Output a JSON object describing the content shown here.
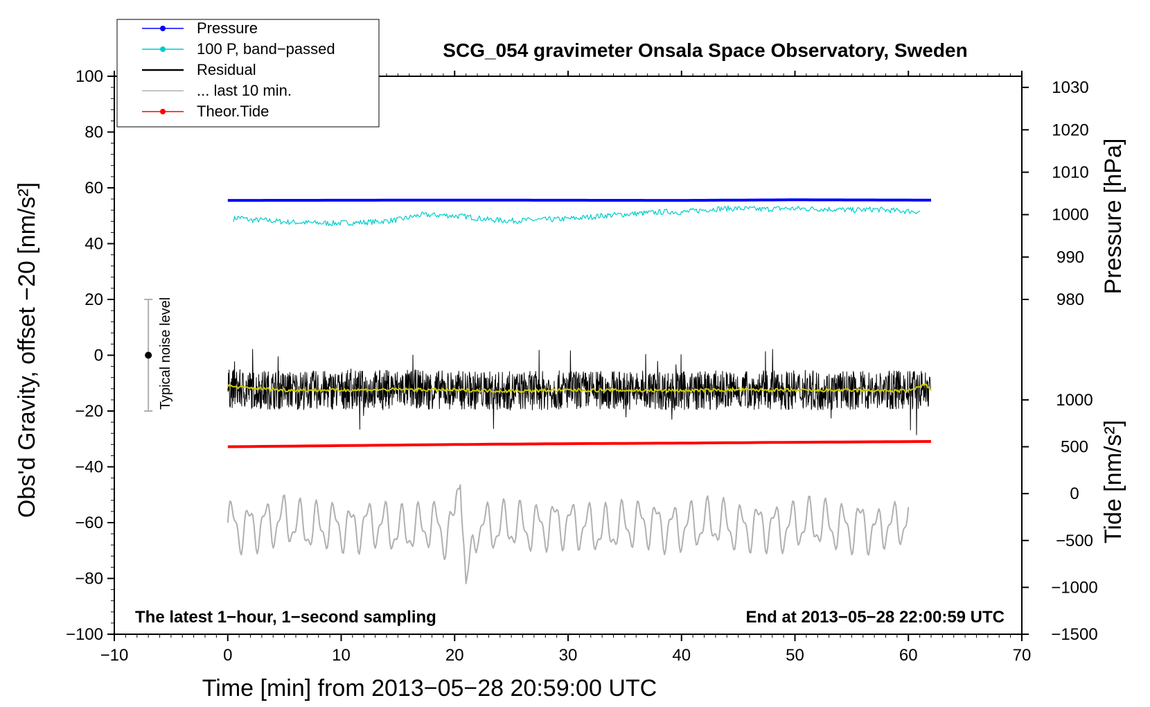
{
  "chart_data": {
    "type": "line",
    "title": "SCG_054 gravimeter Onsala Space Observatory, Sweden",
    "xlabel": "Time [min] from 2013−05−28 20:59:00 UTC",
    "ylabel": "Obs'd Gravity, offset −20 [nm/s²]",
    "ylabel_right_top": "Pressure [hPa]",
    "ylabel_right_bottom": "Tide [nm/s²]",
    "xlim": [
      -10,
      70
    ],
    "ylim": [
      -100,
      100
    ],
    "x_ticks": [
      -10,
      0,
      10,
      20,
      30,
      40,
      50,
      60,
      70
    ],
    "x_tick_labels": [
      "−10",
      "0",
      "10",
      "20",
      "30",
      "40",
      "50",
      "60",
      "70"
    ],
    "y_ticks": [
      -100,
      -80,
      -60,
      -40,
      -20,
      0,
      20,
      40,
      60,
      80,
      100
    ],
    "y_tick_labels": [
      "−100",
      "−80",
      "−60",
      "−40",
      "−20",
      "0",
      "20",
      "40",
      "60",
      "80",
      "100"
    ],
    "pressure_axis": {
      "ticks": [
        980,
        990,
        1000,
        1010,
        1020,
        1030
      ],
      "tick_labels": [
        "980",
        "990",
        "1000",
        "1010",
        "1020",
        "1030"
      ],
      "left_value": 50.4,
      "left_hpa": 1000,
      "hpa_per_tick": 10,
      "left_per_tick": 15.2
    },
    "tide_axis": {
      "ticks": [
        -1500,
        -1000,
        -500,
        0,
        500,
        1000
      ],
      "tick_labels": [
        "−1500",
        "−1000",
        "−500",
        "0",
        "500",
        "1000"
      ],
      "left_at_minus1500": -100,
      "left_per_500": 16.8
    },
    "legend": [
      {
        "label": "Pressure",
        "color": "#0000ff",
        "marker": true
      },
      {
        "label": "100 P, band−passed",
        "color": "#00cccc",
        "marker": true
      },
      {
        "label": "Residual",
        "color": "#000000",
        "marker": false
      },
      {
        "label": "... last 10 min.",
        "color": "#b0b0b0",
        "marker": false
      },
      {
        "label": "Theor.Tide",
        "color": "#ff0000",
        "marker": true
      }
    ],
    "annotations": {
      "bottom_left": "The latest 1−hour, 1−second sampling",
      "bottom_right": "End at 2013−05−28 22:00:59 UTC",
      "noise_label": "Typical noise level"
    },
    "noise_bar": {
      "x": -7,
      "center": 0,
      "low": -20,
      "high": 20
    },
    "series": [
      {
        "name": "Pressure",
        "color": "#0000ff",
        "x": [
          0,
          20,
          40,
          50,
          62
        ],
        "y": [
          55.5,
          55.6,
          55.5,
          55.7,
          55.6
        ]
      },
      {
        "name": "100 P, band−passed",
        "color": "#00cccc",
        "x": [
          0.5,
          1,
          2,
          3,
          5,
          7,
          9,
          11,
          13,
          15,
          17,
          19,
          21,
          23,
          25,
          27,
          29,
          31,
          33,
          35,
          37,
          39,
          40,
          41,
          43,
          45,
          47,
          49,
          51,
          53,
          55,
          57,
          59,
          61
        ],
        "y": [
          48.8,
          49.5,
          48.4,
          48.5,
          47.8,
          47.5,
          47.3,
          47.5,
          47.8,
          48.5,
          50.3,
          50.2,
          49.7,
          48.6,
          48.2,
          48.5,
          48.7,
          49.2,
          50.0,
          50.5,
          51.0,
          51.5,
          51.2,
          51.7,
          52.5,
          52.6,
          52.3,
          52.6,
          52.5,
          52.4,
          52.0,
          52.3,
          51.8,
          51.5
        ]
      },
      {
        "name": "Residual",
        "color": "#000000",
        "x": [
          0,
          5,
          10,
          15,
          20,
          25,
          30,
          35,
          40,
          45,
          50,
          55,
          60,
          62
        ],
        "y": [
          -12,
          -12.5,
          -12.5,
          -12,
          -12.5,
          -12.8,
          -12.5,
          -12.5,
          -12.7,
          -12.5,
          -12.5,
          -12.6,
          -12.5,
          -12
        ]
      },
      {
        "name": "Residual smoothed",
        "color": "#cccc00",
        "x": [
          0,
          1,
          5,
          10,
          15,
          20,
          25,
          30,
          35,
          40,
          45,
          50,
          55,
          60,
          61.5,
          62
        ],
        "y": [
          -11,
          -11.5,
          -12.5,
          -12.5,
          -12.3,
          -12.5,
          -12.8,
          -12.5,
          -12.6,
          -12.7,
          -12.4,
          -12.6,
          -12.6,
          -12.8,
          -10.5,
          -12.5
        ]
      },
      {
        "name": "... last 10 min.",
        "color": "#b0b0b0",
        "x": [
          0,
          1,
          3,
          5,
          7,
          9,
          11,
          13,
          15,
          17,
          18,
          19,
          20,
          20.5,
          21,
          22,
          23,
          25,
          27,
          29,
          31,
          33,
          35,
          37,
          39,
          41,
          43,
          45,
          47,
          49,
          51,
          53,
          55,
          56,
          57,
          58,
          59,
          60
        ],
        "y": [
          -60,
          -62,
          -61,
          -59,
          -62,
          -61,
          -62,
          -60,
          -63,
          -62,
          -60,
          -64,
          -61,
          -37,
          -85,
          -60,
          -62,
          -61,
          -62,
          -60,
          -61,
          -63,
          -61,
          -60,
          -62,
          -61,
          -60,
          -62,
          -61,
          -62,
          -60,
          -61,
          -62,
          -60,
          -64,
          -60,
          -62,
          -57
        ]
      },
      {
        "name": "Theor.Tide",
        "color": "#ff0000",
        "x": [
          0,
          10,
          20,
          30,
          40,
          50,
          62
        ],
        "y": [
          -32.8,
          -32.4,
          -32.0,
          -31.7,
          -31.5,
          -31.2,
          -30.9
        ]
      }
    ]
  }
}
